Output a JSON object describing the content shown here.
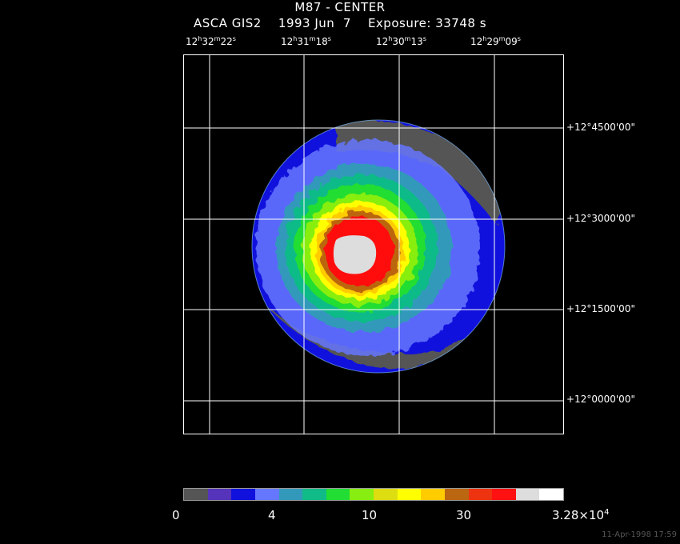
{
  "title": {
    "line1": "M87 - CENTER",
    "line2": "ASCA GIS2    1993 Jun  7    Exposure: 33748 s"
  },
  "ra_labels": [
    {
      "h": "12",
      "m": "32",
      "s": "22"
    },
    {
      "h": "12",
      "m": "31",
      "s": "18"
    },
    {
      "h": "12",
      "m": "30",
      "s": "13"
    },
    {
      "h": "12",
      "m": "29",
      "s": "09"
    }
  ],
  "dec_labels": [
    {
      "sign": "+12",
      "d": "45",
      "rest": "00'00\""
    },
    {
      "sign": "+12",
      "d": "30",
      "rest": "00'00\""
    },
    {
      "sign": "+12",
      "d": "15",
      "rest": "00'00\""
    },
    {
      "sign": "+12",
      "d": "00",
      "rest": "00'00\""
    }
  ],
  "colorbar": {
    "colors": [
      "#555555",
      "#5533bb",
      "#1111dd",
      "#6677ff",
      "#3399bb",
      "#11bb88",
      "#22dd33",
      "#88ee11",
      "#dddd11",
      "#ffff00",
      "#ffcc00",
      "#bb6611",
      "#ee3311",
      "#ff1111",
      "#dddddd",
      "#ffffff"
    ],
    "labels": [
      "0",
      "4",
      "10",
      "30"
    ],
    "max_label": {
      "base": "3.28×10",
      "exp": "4"
    }
  },
  "timestamp": "11-Apr-1998 17:59"
}
